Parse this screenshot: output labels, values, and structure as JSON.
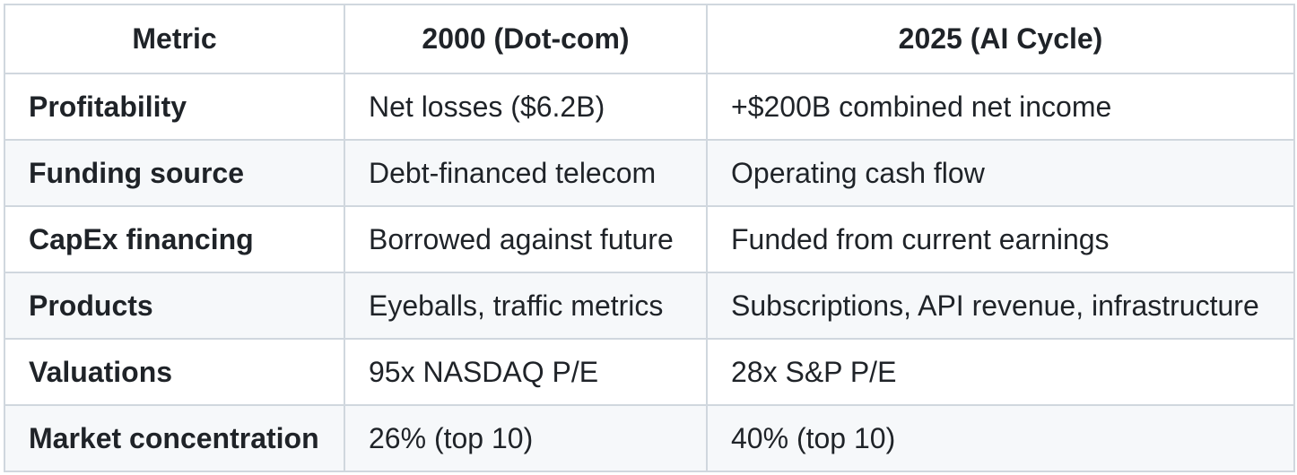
{
  "colors": {
    "background": "#ffffff",
    "border": "#d0d7de",
    "alt_row_bg": "#f6f8fa",
    "text": "#1f2328"
  },
  "table": {
    "headers": [
      "Metric",
      "2000 (Dot-com)",
      "2025 (AI Cycle)"
    ],
    "rows": [
      {
        "metric": "Profitability",
        "dotcom": "Net losses ($6.2B)",
        "ai": "+$200B combined net income"
      },
      {
        "metric": "Funding source",
        "dotcom": "Debt-financed telecom",
        "ai": "Operating cash flow"
      },
      {
        "metric": "CapEx financing",
        "dotcom": "Borrowed against future",
        "ai": "Funded from current earnings"
      },
      {
        "metric": "Products",
        "dotcom": "Eyeballs, traffic metrics",
        "ai": "Subscriptions, API revenue, infrastructure"
      },
      {
        "metric": "Valuations",
        "dotcom": "95x NASDAQ P/E",
        "ai": "28x S&P P/E"
      },
      {
        "metric": "Market concentration",
        "dotcom": "26% (top 10)",
        "ai": "40% (top 10)"
      }
    ]
  }
}
